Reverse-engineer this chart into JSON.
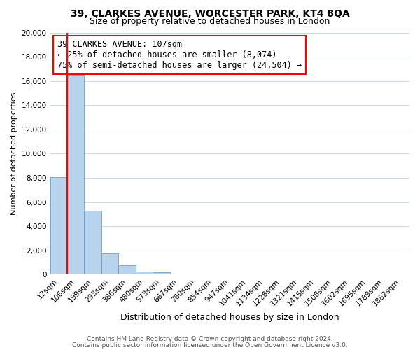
{
  "title": "39, CLARKES AVENUE, WORCESTER PARK, KT4 8QA",
  "subtitle": "Size of property relative to detached houses in London",
  "xlabel": "Distribution of detached houses by size in London",
  "ylabel": "Number of detached properties",
  "bar_labels": [
    "12sqm",
    "106sqm",
    "199sqm",
    "293sqm",
    "386sqm",
    "480sqm",
    "573sqm",
    "667sqm",
    "760sqm",
    "854sqm",
    "947sqm",
    "1041sqm",
    "1134sqm",
    "1228sqm",
    "1321sqm",
    "1415sqm",
    "1508sqm",
    "1602sqm",
    "1695sqm",
    "1789sqm",
    "1882sqm"
  ],
  "bar_values": [
    8074,
    16500,
    5300,
    1750,
    750,
    250,
    200,
    0,
    0,
    0,
    0,
    0,
    0,
    0,
    0,
    0,
    0,
    0,
    0,
    0,
    0
  ],
  "bar_color": "#b8d4ed",
  "bar_edge_color": "#6a9fc8",
  "ylim": [
    0,
    20000
  ],
  "yticks": [
    0,
    2000,
    4000,
    6000,
    8000,
    10000,
    12000,
    14000,
    16000,
    18000,
    20000
  ],
  "red_line_x": 0.5,
  "annotation_title": "39 CLARKES AVENUE: 107sqm",
  "annotation_line1": "← 25% of detached houses are smaller (8,074)",
  "annotation_line2": "75% of semi-detached houses are larger (24,504) →",
  "footer_line1": "Contains HM Land Registry data © Crown copyright and database right 2024.",
  "footer_line2": "Contains public sector information licensed under the Open Government Licence v3.0.",
  "background_color": "#ffffff",
  "grid_color": "#ccd8e8",
  "title_fontsize": 10,
  "subtitle_fontsize": 9,
  "annotation_fontsize": 8.5,
  "ylabel_fontsize": 8,
  "xlabel_fontsize": 9,
  "tick_fontsize": 7.5,
  "footer_fontsize": 6.5
}
